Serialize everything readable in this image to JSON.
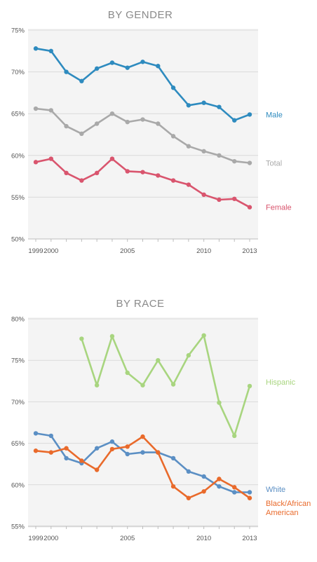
{
  "chart_data": [
    {
      "type": "line",
      "title": "BY GENDER",
      "x": [
        1999,
        2000,
        2001,
        2002,
        2003,
        2004,
        2005,
        2006,
        2007,
        2008,
        2009,
        2010,
        2011,
        2012,
        2013
      ],
      "xticks": [
        "1999",
        "2000",
        "2005",
        "2010",
        "2013"
      ],
      "ylim": [
        50,
        75
      ],
      "yticks": [
        "50%",
        "55%",
        "60%",
        "65%",
        "70%",
        "75%"
      ],
      "grid": true,
      "series": [
        {
          "name": "Male",
          "color": "#2e8bbf",
          "values": [
            72.8,
            72.5,
            70.0,
            68.9,
            70.4,
            71.1,
            70.5,
            71.2,
            70.7,
            68.1,
            66.0,
            66.3,
            65.8,
            64.2,
            64.9
          ]
        },
        {
          "name": "Total",
          "color": "#a9a9a9",
          "values": [
            65.6,
            65.4,
            63.5,
            62.6,
            63.8,
            65.0,
            64.0,
            64.3,
            63.8,
            62.3,
            61.1,
            60.5,
            60.0,
            59.3,
            59.1
          ]
        },
        {
          "name": "Female",
          "color": "#d9556e",
          "values": [
            59.2,
            59.6,
            57.9,
            57.0,
            57.9,
            59.6,
            58.1,
            58.0,
            57.6,
            57.0,
            56.5,
            55.3,
            54.7,
            54.8,
            53.8
          ]
        }
      ]
    },
    {
      "type": "line",
      "title": "BY RACE",
      "x": [
        1999,
        2000,
        2001,
        2002,
        2003,
        2004,
        2005,
        2006,
        2007,
        2008,
        2009,
        2010,
        2011,
        2012,
        2013
      ],
      "xticks": [
        "1999",
        "2000",
        "2005",
        "2010",
        "2013"
      ],
      "ylim": [
        55,
        80
      ],
      "yticks": [
        "55%",
        "60%",
        "65%",
        "70%",
        "75%",
        "80%"
      ],
      "grid": true,
      "series": [
        {
          "name": "Hispanic",
          "color": "#a8d57f",
          "values": [
            null,
            null,
            null,
            77.6,
            72.0,
            77.9,
            73.5,
            72.0,
            75.0,
            72.1,
            75.6,
            78.0,
            69.9,
            65.9,
            71.9
          ]
        },
        {
          "name": "White",
          "color": "#5b8fc4",
          "values": [
            66.2,
            65.9,
            63.2,
            62.6,
            64.4,
            65.2,
            63.7,
            63.9,
            63.9,
            63.2,
            61.6,
            61.0,
            59.8,
            59.1,
            59.1
          ]
        },
        {
          "name": "Black/African American",
          "name_lines": [
            "Black/African",
            "American"
          ],
          "color": "#e96a2b",
          "values": [
            64.1,
            63.9,
            64.4,
            62.9,
            61.8,
            64.3,
            64.6,
            65.8,
            63.9,
            59.8,
            58.4,
            59.2,
            60.7,
            59.7,
            58.4
          ]
        }
      ]
    }
  ]
}
